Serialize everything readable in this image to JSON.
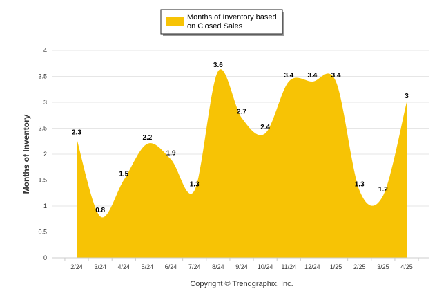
{
  "chart_data": {
    "type": "area",
    "categories": [
      "2/24",
      "3/24",
      "4/24",
      "5/24",
      "6/24",
      "7/24",
      "8/24",
      "9/24",
      "10/24",
      "11/24",
      "12/24",
      "1/25",
      "2/25",
      "3/25",
      "4/25"
    ],
    "series": [
      {
        "name": "Months of Inventory based on Closed Sales",
        "values": [
          2.3,
          0.8,
          1.5,
          2.2,
          1.9,
          1.3,
          3.6,
          2.7,
          2.4,
          3.4,
          3.4,
          3.4,
          1.3,
          1.2,
          3.0
        ],
        "data_labels": [
          "2.3",
          "0.8",
          "1.5",
          "2.2",
          "1.9",
          "1.3",
          "3.6",
          "2.7",
          "2.4",
          "3.4",
          "3.4",
          "3.4",
          "1.3",
          "1.2",
          "3"
        ],
        "color": "#F7C305"
      }
    ],
    "legend_lines": [
      "Months of Inventory based",
      "on Closed Sales"
    ],
    "ylabel": "Months of Inventory",
    "xlabel": "",
    "ylim": [
      0,
      4
    ],
    "yticks": [
      "0",
      "0.5",
      "1",
      "1.5",
      "2",
      "2.5",
      "3",
      "3.5",
      "4"
    ],
    "ytick_values": [
      0,
      0.5,
      1,
      1.5,
      2,
      2.5,
      3,
      3.5,
      4
    ],
    "grid": true,
    "legend_position": "top-center"
  },
  "footer": {
    "copyright": "Copyright © Trendgraphix, Inc."
  }
}
